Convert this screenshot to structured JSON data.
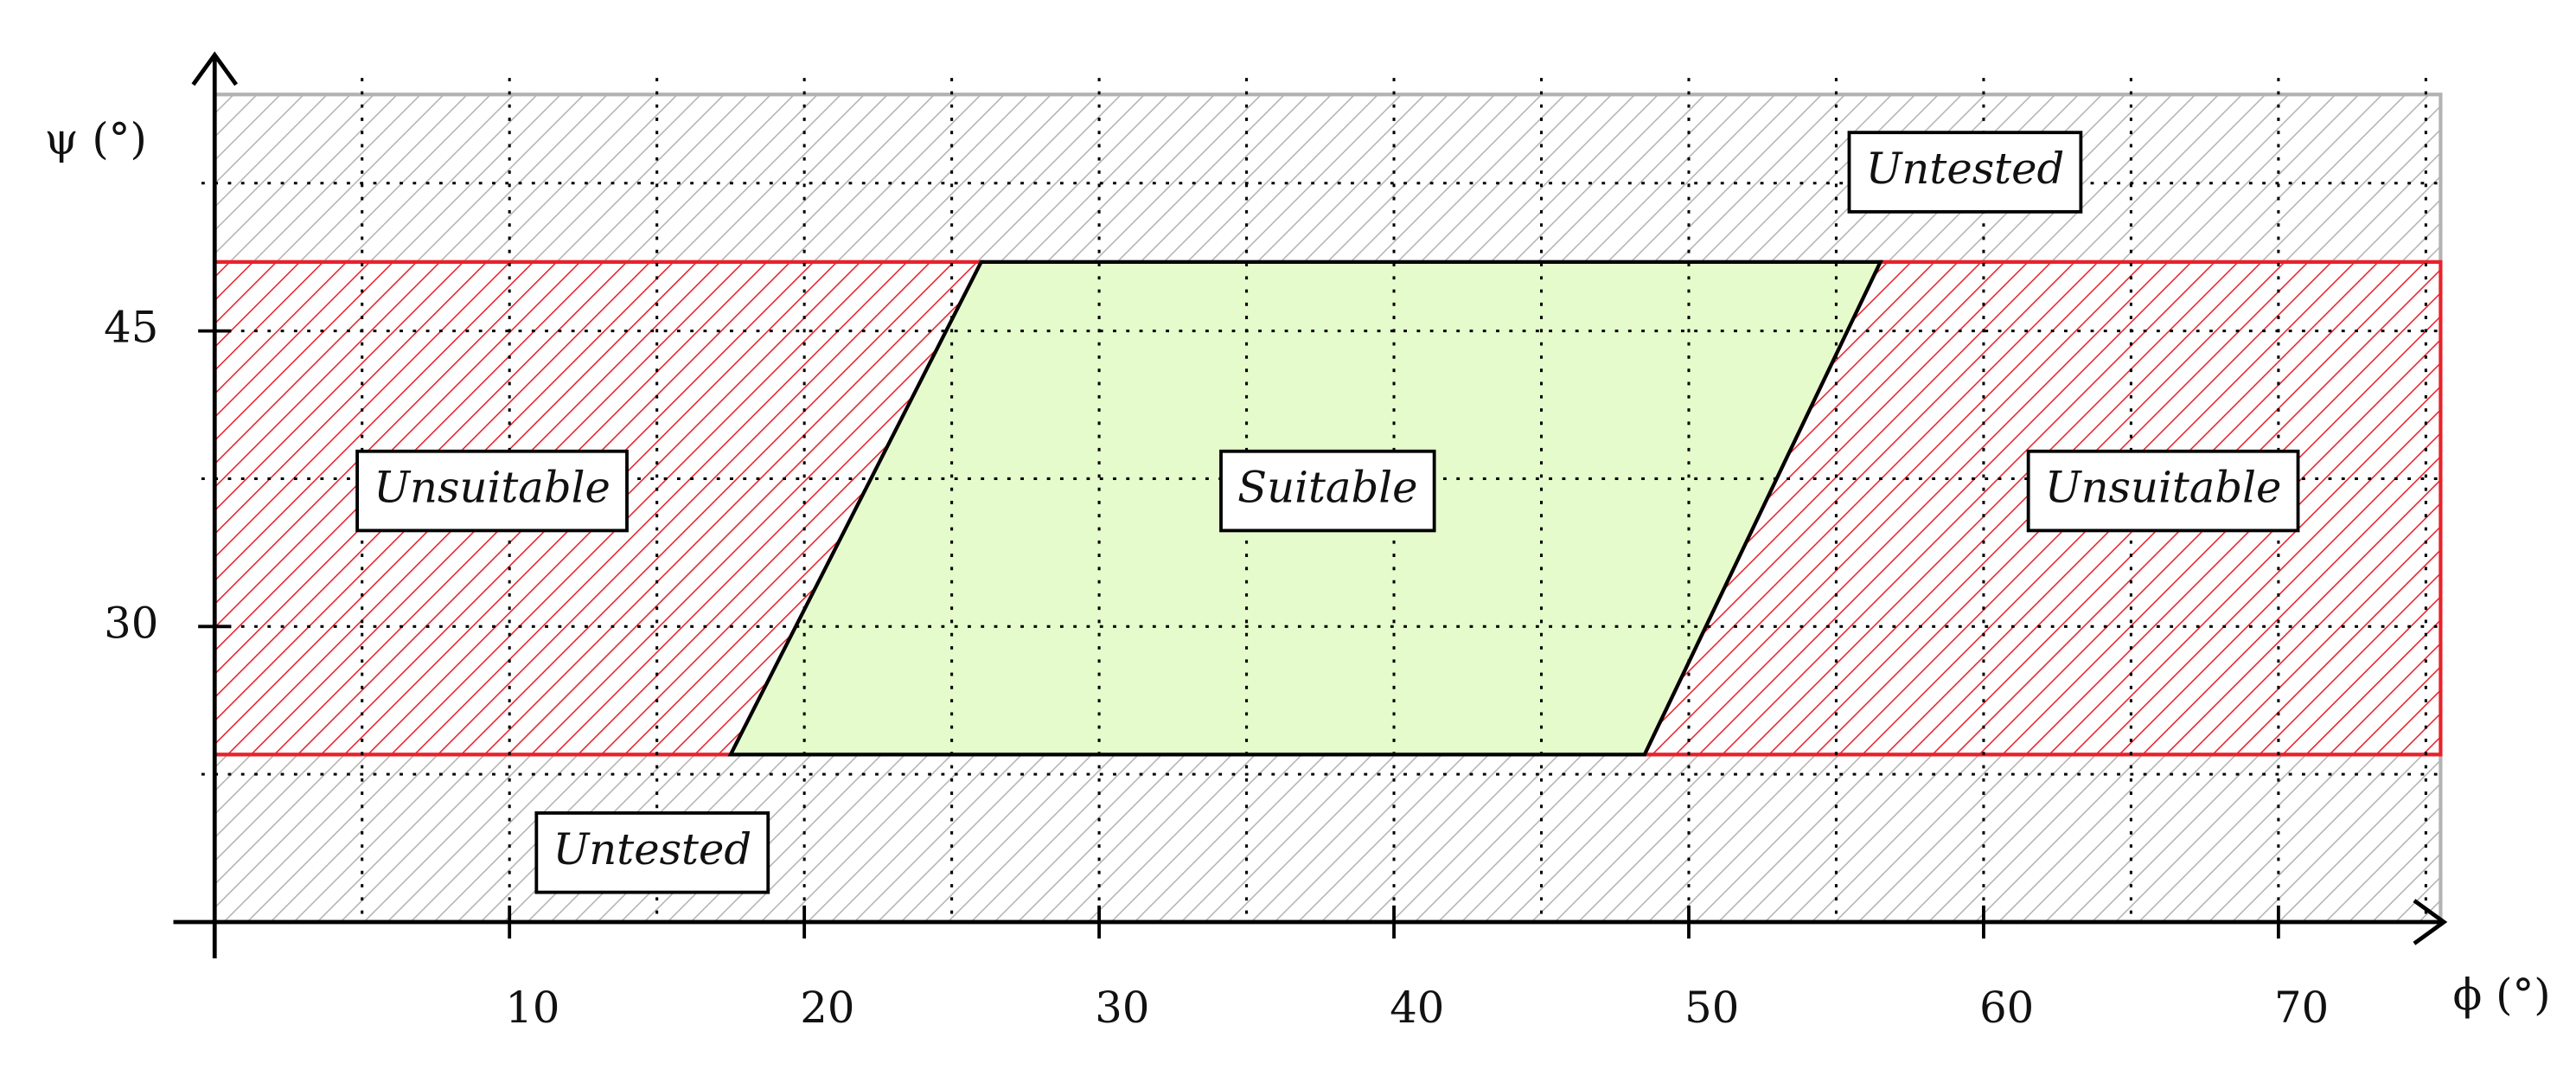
{
  "chart_data": {
    "type": "region",
    "xlabel": "ϕ (°)",
    "ylabel": "ψ (°)",
    "xlim": [
      0,
      75.5
    ],
    "ylim": [
      15,
      57
    ],
    "xticks": [
      10,
      20,
      30,
      40,
      50,
      60,
      70
    ],
    "yticks": [
      30,
      45
    ],
    "xgrid": [
      5,
      10,
      15,
      20,
      25,
      30,
      35,
      40,
      45,
      50,
      55,
      60,
      65,
      70,
      75
    ],
    "ygrid": [
      22.5,
      30,
      37.5,
      45,
      52.5
    ],
    "grid": true,
    "regions": [
      {
        "label": "Untested",
        "color": "#b3b3b3",
        "edge": "#b3b3b3",
        "hatch": true,
        "x": [
          0,
          75.5,
          75.5,
          0
        ],
        "y": [
          48.5,
          48.5,
          57,
          57
        ]
      },
      {
        "label": "Untested",
        "color": "#b3b3b3",
        "edge": "#b3b3b3",
        "hatch": true,
        "x": [
          0,
          75.5,
          75.5,
          0
        ],
        "y": [
          15,
          15,
          23.5,
          23.5
        ]
      },
      {
        "label": "Unsuitable",
        "color": "#e8222b",
        "edge": "#e8222b",
        "hatch": true,
        "x": [
          0,
          17.5,
          26,
          0
        ],
        "y": [
          23.5,
          23.5,
          48.5,
          48.5
        ]
      },
      {
        "label": "Suitable",
        "color": "#e5fbcc",
        "edge": "#000000",
        "hatch": false,
        "x": [
          17.5,
          48.5,
          56.5,
          26
        ],
        "y": [
          23.5,
          23.5,
          48.5,
          48.5
        ]
      },
      {
        "label": "Unsuitable",
        "color": "#e8222b",
        "edge": "#e8222b",
        "hatch": true,
        "x": [
          48.5,
          75.5,
          75.5,
          56.5
        ],
        "y": [
          23.5,
          23.5,
          48.5,
          48.5
        ]
      }
    ]
  }
}
